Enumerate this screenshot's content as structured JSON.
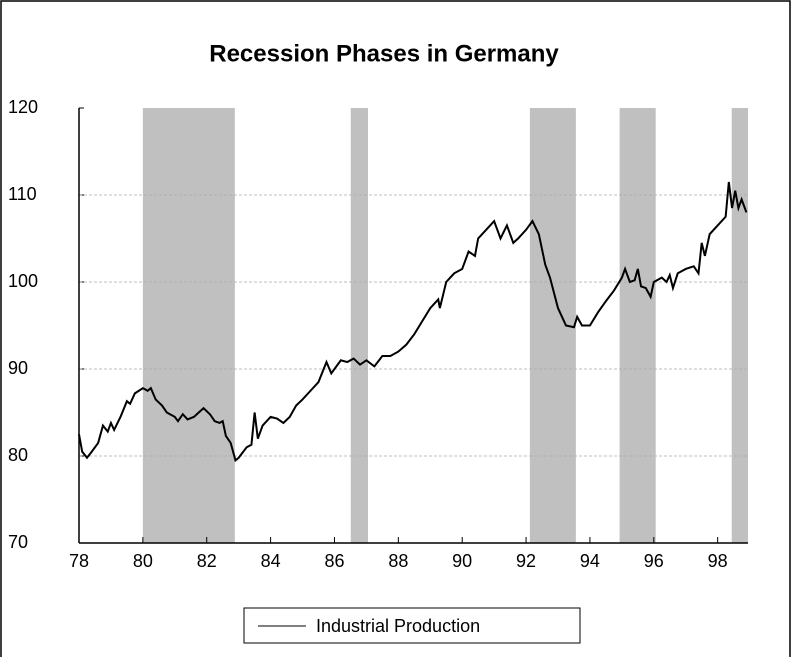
{
  "chart_data": {
    "type": "line",
    "title": "Recession Phases in Germany",
    "xlim": [
      78,
      98.95
    ],
    "xticks": [
      78,
      80,
      82,
      84,
      86,
      88,
      90,
      92,
      94,
      96,
      98
    ],
    "ylim": [
      70,
      120
    ],
    "yticks": [
      70,
      80,
      90,
      100,
      110,
      120
    ],
    "grid": true,
    "shaded_regions": [
      [
        80.0,
        82.88
      ],
      [
        86.51,
        87.05
      ],
      [
        92.12,
        93.56
      ],
      [
        94.93,
        96.06
      ],
      [
        98.44,
        98.95
      ]
    ],
    "shade_color": "#c0c0c0",
    "legend": "bottom",
    "series": [
      {
        "name": "Industrial Production",
        "color": "#000000",
        "x": [
          78.0,
          78.1,
          78.25,
          78.4,
          78.6,
          78.75,
          78.9,
          79.0,
          79.1,
          79.3,
          79.5,
          79.6,
          79.75,
          80.0,
          80.15,
          80.25,
          80.4,
          80.6,
          80.75,
          81.0,
          81.1,
          81.25,
          81.4,
          81.6,
          81.75,
          81.9,
          82.1,
          82.25,
          82.4,
          82.5,
          82.6,
          82.75,
          82.9,
          83.0,
          83.25,
          83.4,
          83.5,
          83.6,
          83.75,
          84.0,
          84.2,
          84.4,
          84.6,
          84.8,
          85.0,
          85.25,
          85.5,
          85.75,
          85.9,
          86.0,
          86.2,
          86.4,
          86.6,
          86.8,
          87.0,
          87.25,
          87.5,
          87.75,
          88.0,
          88.25,
          88.5,
          88.75,
          89.0,
          89.25,
          89.3,
          89.5,
          89.75,
          90.0,
          90.2,
          90.4,
          90.5,
          90.75,
          91.0,
          91.2,
          91.4,
          91.6,
          91.75,
          92.0,
          92.2,
          92.4,
          92.6,
          92.75,
          93.0,
          93.25,
          93.5,
          93.6,
          93.75,
          94.0,
          94.25,
          94.5,
          94.75,
          95.0,
          95.1,
          95.25,
          95.4,
          95.5,
          95.6,
          95.75,
          95.9,
          96.0,
          96.25,
          96.4,
          96.5,
          96.6,
          96.75,
          97.0,
          97.25,
          97.4,
          97.5,
          97.6,
          97.75,
          98.0,
          98.25,
          98.35,
          98.45,
          98.55,
          98.65,
          98.75,
          98.9
        ],
        "values": [
          82.5,
          80.5,
          79.8,
          80.5,
          81.5,
          83.5,
          82.8,
          83.8,
          83.0,
          84.5,
          86.3,
          86.0,
          87.2,
          87.8,
          87.5,
          87.8,
          86.5,
          85.8,
          85.0,
          84.5,
          84.0,
          84.8,
          84.2,
          84.5,
          85.0,
          85.5,
          84.8,
          84.0,
          83.8,
          84.0,
          82.3,
          81.5,
          79.5,
          79.8,
          81.0,
          81.3,
          85.0,
          82.0,
          83.5,
          84.5,
          84.3,
          83.8,
          84.5,
          85.8,
          86.5,
          87.5,
          88.5,
          90.8,
          89.5,
          90.0,
          91.0,
          90.8,
          91.2,
          90.5,
          91.0,
          90.3,
          91.5,
          91.5,
          92.0,
          92.8,
          94.0,
          95.5,
          97.0,
          98.0,
          97.0,
          100.0,
          101.0,
          101.5,
          103.5,
          103.0,
          105.0,
          106.0,
          107.0,
          105.0,
          106.5,
          104.5,
          105.0,
          106.0,
          107.0,
          105.5,
          102.0,
          100.5,
          97.0,
          95.0,
          94.8,
          96.0,
          95.0,
          95.0,
          96.5,
          97.8,
          99.0,
          100.5,
          101.5,
          100.0,
          100.2,
          101.5,
          99.5,
          99.3,
          98.3,
          100.0,
          100.5,
          100.0,
          100.8,
          99.3,
          101.0,
          101.5,
          101.8,
          101.0,
          104.5,
          103.0,
          105.5,
          106.5,
          107.5,
          111.5,
          108.5,
          110.5,
          108.5,
          109.5,
          108.0
        ]
      }
    ]
  }
}
